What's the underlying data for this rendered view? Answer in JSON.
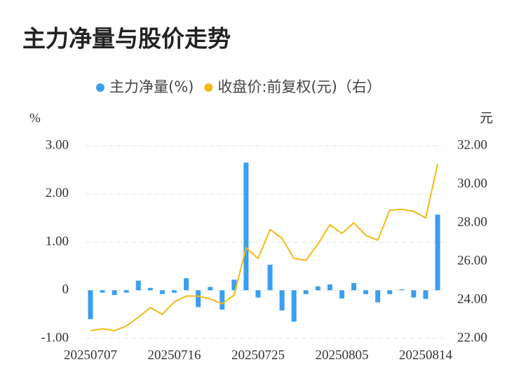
{
  "chart_data": {
    "type": "bar-line",
    "title": "主力净量与股价走势",
    "y_label": "%",
    "y2_label": "元",
    "categories": [
      "20250707",
      null,
      null,
      null,
      null,
      null,
      null,
      "20250716",
      null,
      null,
      null,
      null,
      null,
      null,
      "20250725",
      null,
      null,
      null,
      null,
      null,
      null,
      "20250805",
      null,
      null,
      null,
      null,
      null,
      null,
      "20250814",
      null
    ],
    "series": [
      {
        "name": "主力净量(%)",
        "kind": "bar",
        "color": "#3a9ff0",
        "values": [
          -0.6,
          -0.05,
          -0.1,
          -0.05,
          0.2,
          0.05,
          -0.08,
          -0.05,
          0.25,
          -0.35,
          0.07,
          -0.4,
          0.22,
          2.65,
          -0.15,
          0.53,
          -0.42,
          -0.65,
          -0.08,
          0.08,
          0.12,
          -0.17,
          0.15,
          -0.08,
          -0.25,
          -0.08,
          0.02,
          -0.15,
          -0.18,
          1.57
        ]
      },
      {
        "name": "收盘价:前复权(元)（右）",
        "kind": "line",
        "axis": "y2",
        "color": "#f5b915",
        "values": [
          22.4,
          22.5,
          22.4,
          22.65,
          23.1,
          23.6,
          23.25,
          23.9,
          24.2,
          24.2,
          24.05,
          23.8,
          24.25,
          26.7,
          26.15,
          27.65,
          27.2,
          26.15,
          26.05,
          26.9,
          27.9,
          27.45,
          28.0,
          27.35,
          27.1,
          28.65,
          28.7,
          28.6,
          28.25,
          31.05
        ]
      }
    ],
    "ylim": [
      -1,
      3
    ],
    "yticks": [
      {
        "value": -1,
        "label": "-1.00"
      },
      0,
      {
        "value": 1,
        "label": "1.00"
      },
      {
        "value": 2,
        "label": "2.00"
      },
      {
        "value": 3,
        "label": "3.00"
      }
    ],
    "y2lim": [
      22,
      32
    ],
    "y2ticks": [
      {
        "value": 22,
        "label": "22.00"
      },
      {
        "value": 24,
        "label": "24.00"
      },
      {
        "value": 26,
        "label": "26.00"
      },
      {
        "value": 28,
        "label": "28.00"
      },
      {
        "value": 30,
        "label": "30.00"
      },
      {
        "value": 32,
        "label": "32.00"
      }
    ],
    "grid": true
  }
}
